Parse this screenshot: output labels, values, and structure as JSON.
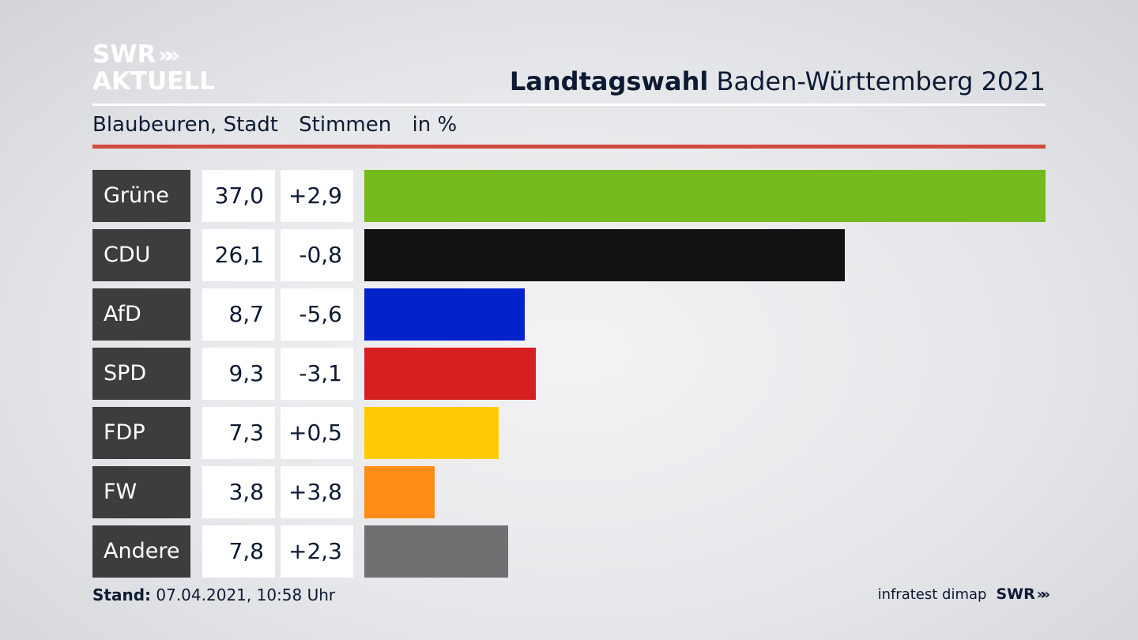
{
  "logo": {
    "line1": "SWR",
    "line2": "AKTUELL",
    "chevrons": "»"
  },
  "headline": {
    "bold": "Landtagswahl",
    "regular": "Baden-Württemberg 2021"
  },
  "subtitle": {
    "place": "Blaubeuren, Stadt",
    "measure": "Stimmen",
    "unit": "in %"
  },
  "colors": {
    "accent_rule": "#d14b3c",
    "label_bg": "#3d3d3d"
  },
  "chart_data": {
    "type": "bar",
    "orientation": "horizontal",
    "categories": [
      "Grüne",
      "CDU",
      "AfD",
      "SPD",
      "FDP",
      "FW",
      "Andere"
    ],
    "values": [
      37.0,
      26.1,
      8.7,
      9.3,
      7.3,
      3.8,
      7.8
    ],
    "value_labels": [
      "37,0",
      "26,1",
      "8,7",
      "9,3",
      "7,3",
      "3,8",
      "7,8"
    ],
    "change_labels": [
      "+2,9",
      "-0,8",
      "-5,6",
      "-3,1",
      "+0,5",
      "+3,8",
      "+2,3"
    ],
    "changes": [
      2.9,
      -0.8,
      -5.6,
      -3.1,
      0.5,
      3.8,
      2.3
    ],
    "colors": [
      "#76bb1d",
      "#121212",
      "#0222cc",
      "#d61f1f",
      "#ffcb05",
      "#ff8c17",
      "#707072"
    ],
    "xlim": [
      0,
      37.0
    ]
  },
  "footer": {
    "stand_label": "Stand:",
    "stand_value": "07.04.2021, 10:58 Uhr",
    "source": "infratest dimap",
    "brand": "SWR"
  }
}
